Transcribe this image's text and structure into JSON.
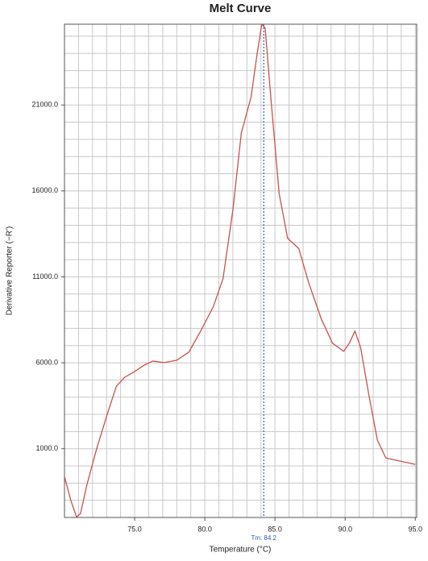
{
  "chart_data": {
    "type": "line",
    "title": "Melt Curve",
    "xlabel": "Temperature (°C)",
    "ylabel": "Derivative Reporter (−R')",
    "x": [
      70.0,
      70.46,
      70.86,
      71.14,
      71.6,
      72.3,
      73.1,
      73.7,
      74.3,
      75.0,
      75.7,
      76.3,
      77.1,
      78.0,
      78.86,
      79.7,
      80.6,
      81.3,
      82.0,
      82.6,
      83.3,
      83.7,
      84.06,
      84.3,
      84.7,
      85.3,
      85.9,
      86.7,
      87.4,
      88.3,
      89.1,
      89.9,
      90.3,
      90.7,
      91.1,
      91.7,
      92.3,
      92.9,
      93.7,
      95.0
    ],
    "series": [
      {
        "name": "Melt Curve",
        "color": "#c8524c",
        "values": [
          -620,
          -2030,
          -2970,
          -2780,
          -1090,
          1025,
          3140,
          4640,
          5160,
          5490,
          5870,
          6100,
          6010,
          6150,
          6620,
          7840,
          9250,
          10900,
          14890,
          19360,
          21470,
          23820,
          25700,
          25470,
          21470,
          15830,
          13250,
          12640,
          10660,
          8550,
          7140,
          6670,
          7140,
          7840,
          6900,
          4080,
          1500,
          460,
          320,
          90
        ]
      }
    ],
    "xlim": [
      70,
      95.1
    ],
    "ylim": [
      -3000,
      25700
    ],
    "xticks": [
      {
        "value": 75,
        "label": "75.0"
      },
      {
        "value": 80,
        "label": "80.0"
      },
      {
        "value": 85,
        "label": "85.0"
      },
      {
        "value": 90,
        "label": "90.0"
      },
      {
        "value": 95,
        "label": "95.0"
      }
    ],
    "yticks": [
      {
        "value": 1000,
        "label": "1000.0"
      },
      {
        "value": 6000,
        "label": "6000.0"
      },
      {
        "value": 11000,
        "label": "11000.0"
      },
      {
        "value": 16000,
        "label": "16000.0"
      },
      {
        "value": 21000,
        "label": "21000.0"
      }
    ],
    "grid": true,
    "grid_step": {
      "x": 1,
      "y": 1000
    },
    "tm": {
      "value": 84.2,
      "label": "Tm: 84.2",
      "color": "#2a5fa8"
    }
  }
}
